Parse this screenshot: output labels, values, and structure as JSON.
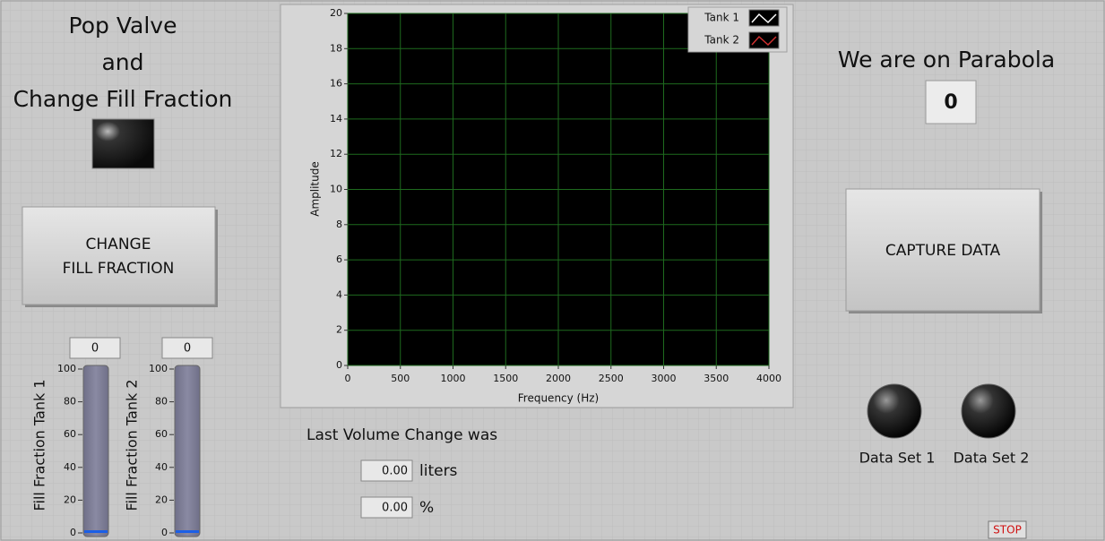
{
  "pop_valve": {
    "title_lines": [
      "Pop Valve",
      "and",
      "Change Fill Fraction"
    ]
  },
  "buttons": {
    "change_fill": [
      "CHANGE",
      "FILL FRACTION"
    ],
    "capture": "CAPTURE DATA",
    "stop": "STOP"
  },
  "tanks": [
    {
      "label": "Fill Fraction Tank 1",
      "value": 0
    },
    {
      "label": "Fill Fraction Tank 2",
      "value": 0
    }
  ],
  "tank_scale": {
    "ylim": [
      0,
      100
    ],
    "yticks": [
      0,
      20,
      40,
      60,
      80,
      100
    ]
  },
  "graph": {
    "xlabel": "Frequency (Hz)",
    "ylabel": "Amplitude",
    "xlim": [
      0,
      4000
    ],
    "xticks": [
      0,
      500,
      1000,
      1500,
      2000,
      2500,
      3000,
      3500,
      4000
    ],
    "ylim": [
      0,
      20
    ],
    "yticks": [
      0,
      2,
      4,
      6,
      8,
      10,
      12,
      14,
      16,
      18,
      20
    ],
    "grid": true,
    "grid_color": "#1e6a1e",
    "legend": [
      {
        "name": "Tank 1",
        "color": "#ffffff"
      },
      {
        "name": "Tank 2",
        "color": "#d03030"
      }
    ]
  },
  "volume": {
    "label": "Last Volume Change was",
    "liters": {
      "value": "0.00",
      "unit": "liters"
    },
    "percent": {
      "value": "0.00",
      "unit": "%"
    }
  },
  "parabola": {
    "label": "We are on Parabola",
    "value": 0
  },
  "data_sets": [
    "Data Set 1",
    "Data Set 2"
  ]
}
